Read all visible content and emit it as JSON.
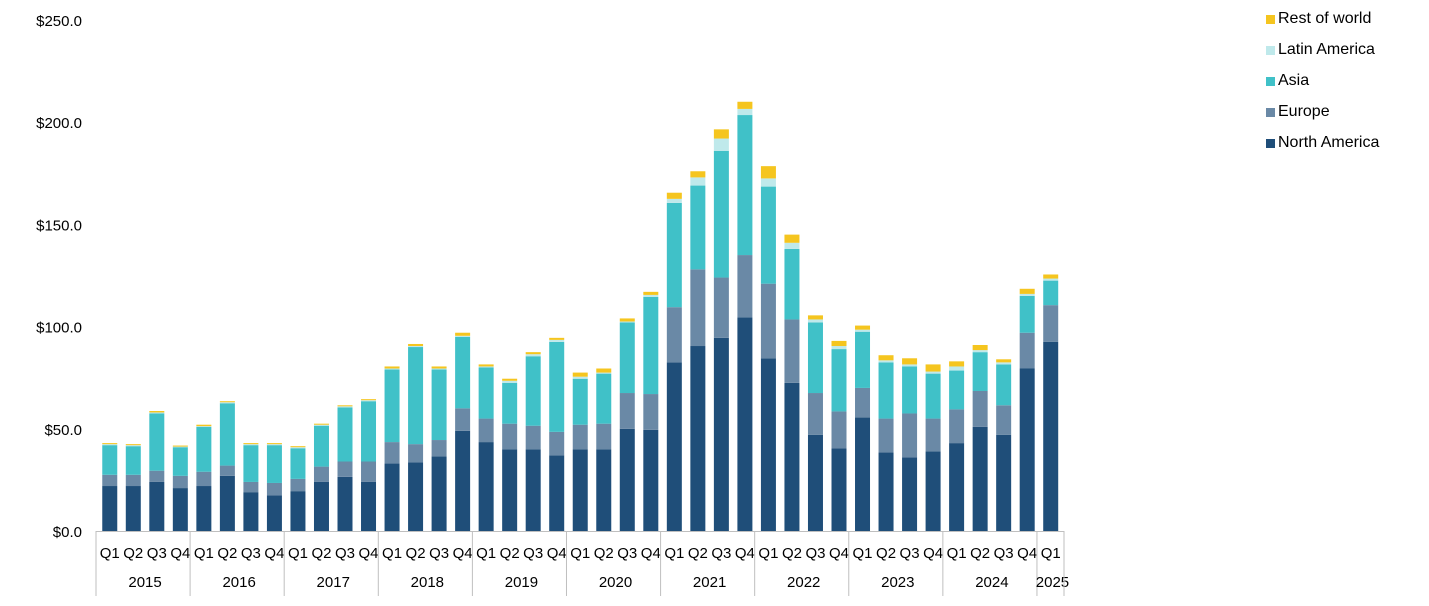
{
  "chart_data": {
    "type": "bar",
    "stacked": true,
    "y_axis": {
      "ylim": [
        0,
        250
      ],
      "ticks": [
        "$0.0",
        "$50.0",
        "$100.0",
        "$150.0",
        "$200.0",
        "$250.0"
      ]
    },
    "years": [
      {
        "label": "2015",
        "quarters": 4
      },
      {
        "label": "2016",
        "quarters": 4
      },
      {
        "label": "2017",
        "quarters": 4
      },
      {
        "label": "2018",
        "quarters": 4
      },
      {
        "label": "2019",
        "quarters": 4
      },
      {
        "label": "2020",
        "quarters": 4
      },
      {
        "label": "2021",
        "quarters": 4
      },
      {
        "label": "2022",
        "quarters": 4
      },
      {
        "label": "2023",
        "quarters": 4
      },
      {
        "label": "2024",
        "quarters": 4
      },
      {
        "label": "2025",
        "quarters": 1
      }
    ],
    "categories": [
      "Q1",
      "Q2",
      "Q3",
      "Q4",
      "Q1",
      "Q2",
      "Q3",
      "Q4",
      "Q1",
      "Q2",
      "Q3",
      "Q4",
      "Q1",
      "Q2",
      "Q3",
      "Q4",
      "Q1",
      "Q2",
      "Q3",
      "Q4",
      "Q1",
      "Q2",
      "Q3",
      "Q4",
      "Q1",
      "Q2",
      "Q3",
      "Q4",
      "Q1",
      "Q2",
      "Q3",
      "Q4",
      "Q1",
      "Q2",
      "Q3",
      "Q4",
      "Q1",
      "Q2",
      "Q3",
      "Q4",
      "Q1"
    ],
    "series": [
      {
        "name": "North America",
        "color": "#1f4e79",
        "values": [
          22,
          22,
          24,
          21,
          22,
          27,
          19,
          17.5,
          19.5,
          24,
          26.5,
          24,
          33,
          33.5,
          36.5,
          49,
          43.5,
          40,
          40,
          37,
          40,
          40,
          50,
          49.5,
          82.5,
          90.5,
          94.5,
          104.5,
          84.5,
          72.5,
          47,
          40.5,
          55.5,
          38.5,
          36,
          39,
          43,
          51,
          47,
          79.5,
          92.5
        ]
      },
      {
        "name": "Europe",
        "color": "#6a89a6",
        "values": [
          5.5,
          5.5,
          5.5,
          6,
          7,
          5,
          5,
          6,
          6,
          7.5,
          7.5,
          10,
          10.5,
          9,
          8,
          11,
          11.5,
          12.5,
          11.5,
          11.5,
          12,
          12.5,
          17.5,
          17.5,
          27,
          37.5,
          29.5,
          30.5,
          36.5,
          31,
          20.5,
          18,
          14.5,
          16.5,
          21.5,
          16,
          16.5,
          17.5,
          14.5,
          17.5,
          18
        ]
      },
      {
        "name": "Asia",
        "color": "#40c1c8",
        "values": [
          14.5,
          14,
          28,
          14,
          22,
          30.5,
          18,
          18.5,
          15,
          20,
          26.5,
          29.5,
          35.5,
          47.5,
          34.5,
          35,
          25,
          20,
          34,
          44,
          22.5,
          24.5,
          34.5,
          47.5,
          51,
          41,
          62,
          68.5,
          47.5,
          34.5,
          34.5,
          30.5,
          27.5,
          27.5,
          23,
          22,
          19,
          19,
          20,
          18,
          12
        ]
      },
      {
        "name": "Latin America",
        "color": "#bfe9eb",
        "values": [
          0.5,
          0.5,
          0.5,
          0.3,
          0.3,
          0.5,
          0.5,
          0.5,
          0.5,
          0.5,
          0.5,
          0.5,
          0.5,
          0.5,
          0.5,
          0.5,
          0.5,
          1,
          1,
          1,
          1,
          0.5,
          0.5,
          1,
          2,
          4,
          6,
          3,
          4,
          3,
          1.5,
          1.5,
          1,
          1,
          1,
          1,
          2,
          1,
          1,
          1,
          1
        ]
      },
      {
        "name": "Rest of world",
        "color": "#f5c51f",
        "values": [
          0.5,
          0.5,
          0.7,
          0.5,
          0.7,
          0.5,
          0.5,
          0.5,
          0.5,
          0.5,
          0.5,
          0.5,
          1,
          1,
          1,
          1.5,
          1,
          1,
          1,
          1,
          2,
          2,
          1.5,
          1.5,
          3,
          3,
          4.5,
          3.5,
          6,
          4,
          2,
          2.5,
          2,
          2.5,
          3,
          3.5,
          2.5,
          2.5,
          1.5,
          2.5,
          2
        ]
      }
    ],
    "legend_order": [
      "Rest of world",
      "Latin America",
      "Asia",
      "Europe",
      "North America"
    ],
    "legend_position": "top-right",
    "grid": false
  }
}
